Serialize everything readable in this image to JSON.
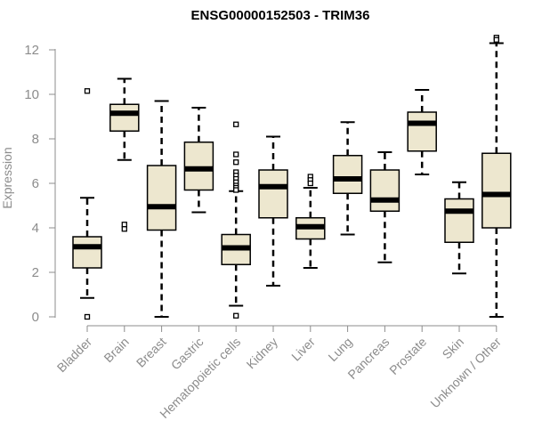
{
  "chart_data": {
    "type": "boxplot",
    "title": "ENSG00000152503 - TRIM36",
    "xlabel": "",
    "ylabel": "Expression",
    "ylim": [
      0,
      12.5
    ],
    "yticks": [
      0,
      2,
      4,
      6,
      8,
      10,
      12
    ],
    "box_fill": "#ede7cf",
    "categories": [
      "Bladder",
      "Brain",
      "Breast",
      "Gastric",
      "Hematopoietic cells",
      "Kidney",
      "Liver",
      "Lung",
      "Pancreas",
      "Prostate",
      "Skin",
      "Unknown / Other"
    ],
    "boxes": [
      {
        "whisker_low": 0.85,
        "q1": 2.2,
        "median": 3.15,
        "q3": 3.6,
        "whisker_high": 5.35,
        "outliers": [
          10.15,
          0.0
        ]
      },
      {
        "whisker_low": 7.05,
        "q1": 8.35,
        "median": 9.15,
        "q3": 9.55,
        "whisker_high": 10.7,
        "outliers": [
          4.15,
          3.95
        ]
      },
      {
        "whisker_low": 0.0,
        "q1": 3.9,
        "median": 4.95,
        "q3": 6.8,
        "whisker_high": 9.7,
        "outliers": []
      },
      {
        "whisker_low": 4.7,
        "q1": 5.7,
        "median": 6.65,
        "q3": 7.85,
        "whisker_high": 9.4,
        "outliers": []
      },
      {
        "whisker_low": 0.5,
        "q1": 2.35,
        "median": 3.1,
        "q3": 3.7,
        "whisker_high": 5.65,
        "outliers": [
          8.65,
          7.3,
          6.95,
          6.5,
          6.35,
          6.2,
          6.05,
          5.9,
          5.8,
          5.7,
          0.05
        ]
      },
      {
        "whisker_low": 1.4,
        "q1": 4.45,
        "median": 5.85,
        "q3": 6.6,
        "whisker_high": 8.1,
        "outliers": []
      },
      {
        "whisker_low": 2.2,
        "q1": 3.5,
        "median": 4.05,
        "q3": 4.45,
        "whisker_high": 5.8,
        "outliers": [
          6.3,
          6.15,
          6.0
        ]
      },
      {
        "whisker_low": 3.7,
        "q1": 5.55,
        "median": 6.2,
        "q3": 7.25,
        "whisker_high": 8.75,
        "outliers": []
      },
      {
        "whisker_low": 2.45,
        "q1": 4.75,
        "median": 5.25,
        "q3": 6.6,
        "whisker_high": 7.4,
        "outliers": []
      },
      {
        "whisker_low": 6.4,
        "q1": 7.45,
        "median": 8.7,
        "q3": 9.2,
        "whisker_high": 10.2,
        "outliers": []
      },
      {
        "whisker_low": 1.95,
        "q1": 3.35,
        "median": 4.75,
        "q3": 5.3,
        "whisker_high": 6.05,
        "outliers": []
      },
      {
        "whisker_low": 0.0,
        "q1": 4.0,
        "median": 5.5,
        "q3": 7.35,
        "whisker_high": 12.3,
        "outliers": [
          12.55,
          12.45
        ]
      }
    ]
  }
}
